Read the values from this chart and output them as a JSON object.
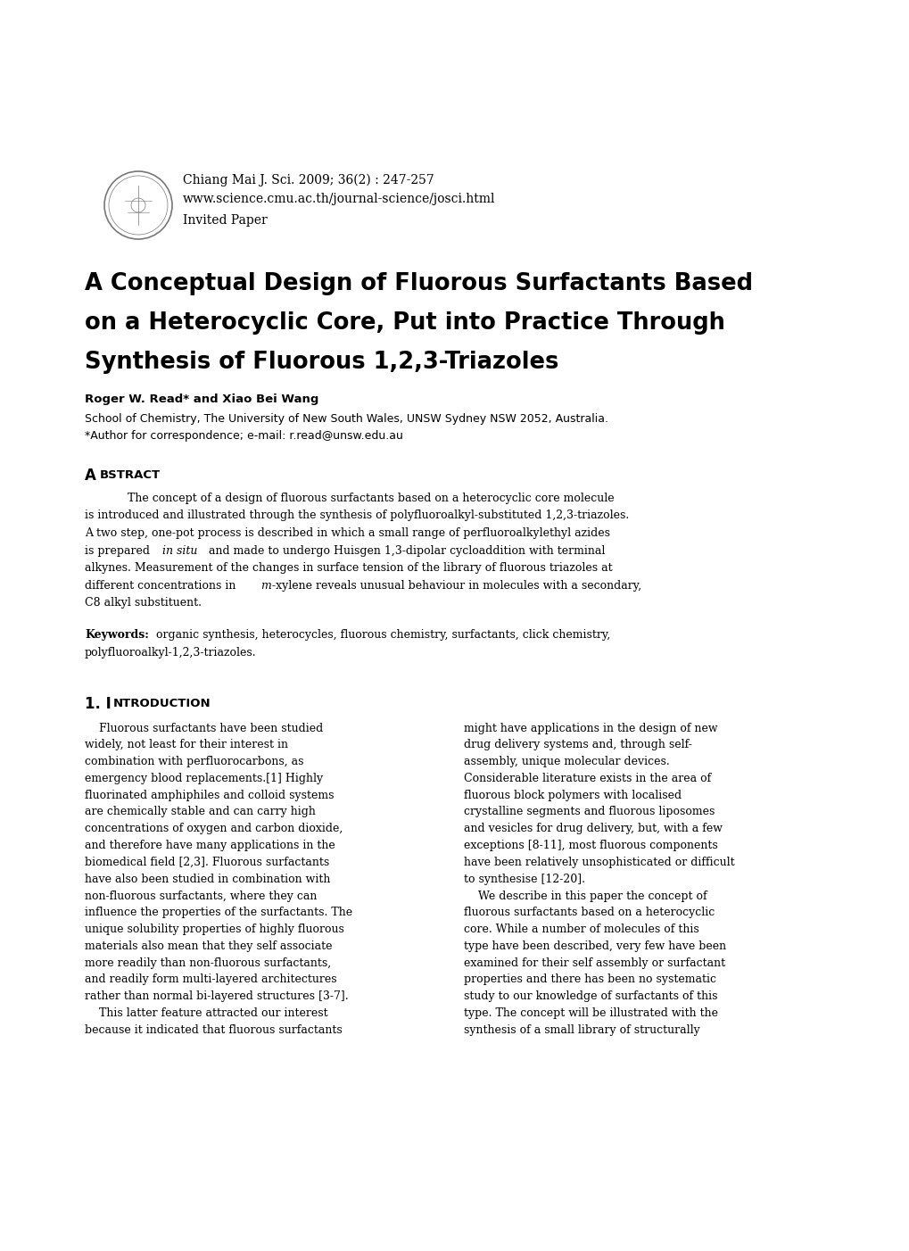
{
  "bg_color": "#ffffff",
  "journal_line1": "Chiang Mai J. Sci. 2009; 36(2) : 247-257",
  "journal_line2": "www.science.cmu.ac.th/journal-science/josci.html",
  "journal_line3": "Invited Paper",
  "title_line1": "A Conceptual Design of Fluorous Surfactants Based",
  "title_line2": "on a Heterocyclic Core, Put into Practice Through",
  "title_line3": "Synthesis of Fluorous 1,2,3-Triazoles",
  "authors": "Roger W. Read* and Xiao Bei Wang",
  "affiliation": "School of Chemistry, The University of New South Wales, UNSW Sydney NSW 2052, Australia.",
  "correspondence": "*Author for correspondence; e-mail: r.read@unsw.edu.au",
  "abstract_heading_big": "A",
  "abstract_heading_small": "BSTRACT",
  "abstract_indent": "            The concept of a design of fluorous surfactants based on a heterocyclic core molecule",
  "abstract_line2": "is introduced and illustrated through the synthesis of polyfluoroalkyl-substituted 1,2,3-triazoles.",
  "abstract_line3": "A two step, one-pot process is described in which a small range of perfluoroalkylethyl azides",
  "abstract_line4a": "is prepared ",
  "abstract_line4b": "in situ",
  "abstract_line4c": " and made to undergo Huisgen 1,3-dipolar cycloaddition with terminal",
  "abstract_line5": "alkynes. Measurement of the changes in surface tension of the library of fluorous triazoles at",
  "abstract_line6a": "different concentrations in ",
  "abstract_line6b": "m",
  "abstract_line6c": "-xylene reveals unusual behaviour in molecules with a secondary,",
  "abstract_line7": "C8 alkyl substituent.",
  "kw_bold": "Keywords:",
  "kw_rest1": " organic synthesis, heterocycles, fluorous chemistry, surfactants, click chemistry,",
  "kw_rest2": "polyfluoroalkyl-1,2,3-triazoles.",
  "sec1_big": "1. I",
  "sec1_small": "NTRODUCTION",
  "col1_lines": [
    "    Fluorous surfactants have been studied",
    "widely, not least for their interest in",
    "combination with perfluorocarbons, as",
    "emergency blood replacements.[1] Highly",
    "fluorinated amphiphiles and colloid systems",
    "are chemically stable and can carry high",
    "concentrations of oxygen and carbon dioxide,",
    "and therefore have many applications in the",
    "biomedical field [2,3]. Fluorous surfactants",
    "have also been studied in combination with",
    "non-fluorous surfactants, where they can",
    "influence the properties of the surfactants. The",
    "unique solubility properties of highly fluorous",
    "materials also mean that they self associate",
    "more readily than non-fluorous surfactants,",
    "and readily form multi-layered architectures",
    "rather than normal bi-layered structures [3-7].",
    "    This latter feature attracted our interest",
    "because it indicated that fluorous surfactants"
  ],
  "col2_lines": [
    "might have applications in the design of new",
    "drug delivery systems and, through self-",
    "assembly, unique molecular devices.",
    "Considerable literature exists in the area of",
    "fluorous block polymers with localised",
    "crystalline segments and fluorous liposomes",
    "and vesicles for drug delivery, but, with a few",
    "exceptions [8-11], most fluorous components",
    "have been relatively unsophisticated or difficult",
    "to synthesise [12-20].",
    "    We describe in this paper the concept of",
    "fluorous surfactants based on a heterocyclic",
    "core. While a number of molecules of this",
    "type have been described, very few have been",
    "examined for their self assembly or surfactant",
    "properties and there has been no systematic",
    "study to our knowledge of surfactants of this",
    "type. The concept will be illustrated with the",
    "synthesis of a small library of structurally"
  ],
  "fig_width": 10.2,
  "fig_height": 14.02,
  "dpi": 100
}
